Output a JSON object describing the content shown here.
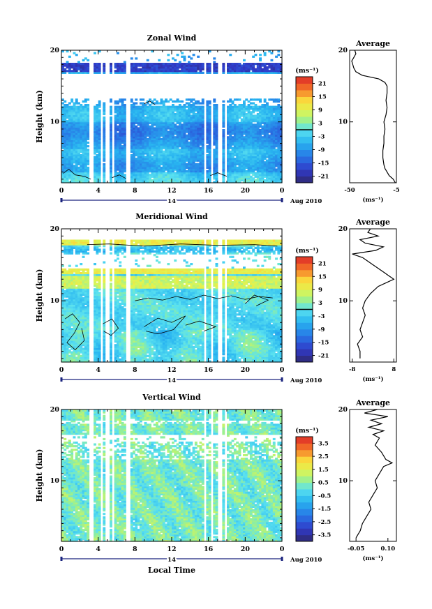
{
  "chart_data": [
    {
      "type": "heatmap",
      "title": "Zonal Wind",
      "ylabel": "Height (km)",
      "xlabel": "",
      "x_ticks": [
        "0",
        "4",
        "8",
        "12",
        "16",
        "20",
        "0"
      ],
      "y_ticks": [
        "20",
        "10"
      ],
      "xlim": [
        0,
        24
      ],
      "ylim": [
        1.5,
        20
      ],
      "date_day": "14",
      "date_label": "Aug 2010",
      "colorbar": {
        "unit": "(ms⁻¹)",
        "ticks": [
          "21",
          "15",
          "9",
          "3",
          "-3",
          "-9",
          "-15",
          "-21"
        ],
        "range": [
          -24,
          24
        ],
        "zero_line": true
      },
      "profile": {
        "title": "Average",
        "unit": "(ms⁻¹)",
        "x_ticks": [
          "-50",
          "-5"
        ],
        "x_tick_values": [
          -50,
          -5
        ],
        "xlim": [
          -50,
          -5
        ],
        "y_ticks": [
          "20",
          "10"
        ],
        "height_km": [
          1.5,
          2.0,
          2.5,
          3.0,
          3.5,
          4.0,
          5.0,
          6.0,
          7.0,
          8.0,
          9.0,
          10.0,
          11.0,
          12.0,
          13.0,
          14.0,
          15.0,
          15.5,
          16.0,
          16.5,
          17.0,
          17.5,
          18.0,
          18.5,
          19.0,
          19.5,
          20.0
        ],
        "wind_ms": [
          -6,
          -8,
          -12,
          -14,
          -16,
          -17,
          -18,
          -18,
          -17,
          -17,
          -16,
          -17,
          -15,
          -14,
          -15,
          -14,
          -14,
          -16,
          -22,
          -38,
          -44,
          -46,
          -47,
          -48,
          -46,
          -44,
          -45
        ]
      }
    },
    {
      "type": "heatmap",
      "title": "Meridional Wind",
      "ylabel": "Height (km)",
      "xlabel": "",
      "x_ticks": [
        "0",
        "4",
        "8",
        "12",
        "16",
        "20",
        "0"
      ],
      "y_ticks": [
        "20",
        "10"
      ],
      "xlim": [
        0,
        24
      ],
      "ylim": [
        1.5,
        20
      ],
      "date_day": "14",
      "date_label": "Aug 2010",
      "colorbar": {
        "unit": "(ms⁻¹)",
        "ticks": [
          "21",
          "15",
          "9",
          "3",
          "-3",
          "-9",
          "-15",
          "-21"
        ],
        "range": [
          -24,
          24
        ],
        "zero_line": true
      },
      "profile": {
        "title": "Average",
        "unit": "(ms⁻¹)",
        "x_ticks": [
          "-8",
          "8"
        ],
        "x_tick_values": [
          -8,
          8
        ],
        "xlim": [
          -9,
          9
        ],
        "y_ticks": [
          "20",
          "10"
        ],
        "height_km": [
          2.0,
          3.0,
          4.0,
          5.0,
          6.0,
          7.0,
          8.0,
          9.0,
          10.0,
          11.0,
          12.0,
          12.5,
          13.0,
          13.5,
          14.0,
          15.0,
          16.0,
          16.5,
          17.0,
          17.5,
          18.0,
          18.5,
          19.0,
          19.5,
          20.0
        ],
        "wind_ms": [
          -5,
          -5,
          -6,
          -4,
          -5,
          -4,
          -3,
          -4,
          -3,
          -1,
          2,
          5,
          8,
          6,
          4,
          0,
          -4,
          -8,
          1,
          4,
          -3,
          -5,
          2,
          -2,
          -1
        ]
      }
    },
    {
      "type": "heatmap",
      "title": "Vertical Wind",
      "ylabel": "Height (km)",
      "xlabel": "Local Time",
      "x_ticks": [
        "0",
        "4",
        "8",
        "12",
        "16",
        "20",
        "0"
      ],
      "y_ticks": [
        "20",
        "10"
      ],
      "xlim": [
        0,
        24
      ],
      "ylim": [
        1.5,
        20
      ],
      "date_day": "14",
      "date_label": "Aug 2010",
      "colorbar": {
        "unit": "(ms⁻¹)",
        "ticks": [
          "3.5",
          "2.5",
          "1.5",
          "0.5",
          "-0.5",
          "-1.5",
          "-2.5",
          "-3.5"
        ],
        "range": [
          -4,
          4
        ],
        "zero_line": false
      },
      "profile": {
        "title": "Average",
        "unit": "(ms⁻¹)",
        "x_ticks": [
          "-0.05",
          "0.10"
        ],
        "x_tick_values": [
          -0.05,
          0.1
        ],
        "xlim": [
          -0.08,
          0.14
        ],
        "y_ticks": [
          "20",
          "10"
        ],
        "height_km": [
          2.0,
          3.0,
          4.0,
          5.0,
          6.0,
          7.0,
          8.0,
          9.0,
          10.0,
          11.0,
          12.0,
          12.5,
          13.0,
          14.0,
          15.0,
          16.0,
          16.5,
          17.0,
          17.5,
          18.0,
          18.5,
          19.0,
          19.5,
          20.0
        ],
        "wind_ms": [
          -0.05,
          -0.03,
          -0.02,
          0.0,
          0.02,
          0.01,
          0.03,
          0.05,
          0.04,
          0.06,
          0.08,
          0.12,
          0.09,
          0.07,
          0.04,
          0.06,
          0.03,
          0.08,
          0.01,
          0.07,
          0.02,
          0.1,
          -0.01,
          0.05
        ]
      }
    }
  ]
}
